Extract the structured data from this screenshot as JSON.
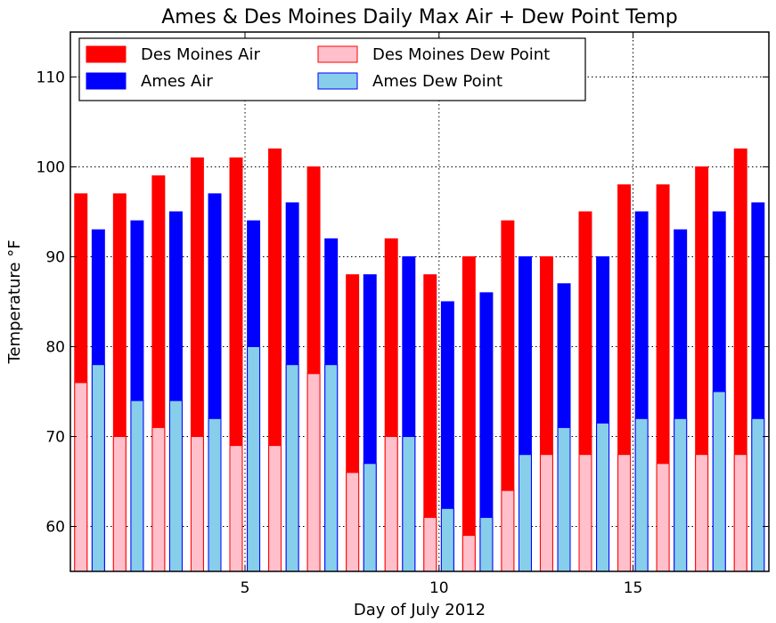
{
  "chart_data": {
    "type": "bar",
    "title": "Ames & Des Moines Daily Max Air + Dew Point Temp",
    "xlabel": "Day of July 2012",
    "ylabel": "Temperature °F",
    "ylim": [
      55,
      115
    ],
    "xlim": [
      0.5,
      18.5
    ],
    "xticks": [
      5,
      10,
      15
    ],
    "yticks": [
      60,
      70,
      80,
      90,
      100,
      110
    ],
    "grid": true,
    "legend_position": "top",
    "x": [
      1,
      2,
      3,
      4,
      5,
      6,
      7,
      8,
      9,
      10,
      11,
      12,
      13,
      14,
      15,
      16,
      17,
      18
    ],
    "series": [
      {
        "name": "Des Moines Air",
        "color": "#ff0000",
        "values": [
          97,
          97,
          99,
          101,
          101,
          102,
          100,
          88,
          92,
          88,
          90,
          94,
          90,
          95,
          98,
          98,
          100,
          102
        ]
      },
      {
        "name": "Ames Air",
        "color": "#0000ff",
        "values": [
          93,
          94,
          95,
          97,
          94,
          96,
          92,
          88,
          90,
          85,
          86,
          90,
          87,
          90,
          95,
          93,
          95,
          96
        ]
      },
      {
        "name": "Des Moines Dew Point",
        "color": "#ffc0cb",
        "values": [
          76,
          70,
          71,
          70,
          69,
          69,
          77,
          66,
          70,
          61,
          59,
          64,
          68,
          68,
          68,
          67,
          68,
          68
        ]
      },
      {
        "name": "Ames Dew Point",
        "color": "#87ceeb",
        "values": [
          78,
          74,
          74,
          72,
          80,
          78,
          78,
          67,
          70,
          62,
          61,
          68,
          71,
          71.5,
          72,
          72,
          75,
          72
        ]
      }
    ]
  }
}
